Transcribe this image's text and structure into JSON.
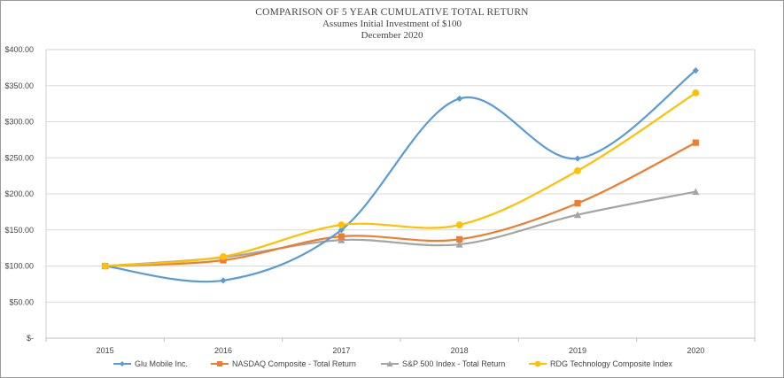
{
  "chart_data": {
    "type": "line",
    "title": "COMPARISON OF 5 YEAR CUMULATIVE  TOTAL RETURN",
    "subtitle": "Assumes Initial Investment of $100",
    "subtitle2": "December 2020",
    "xlabel": "",
    "ylabel": "",
    "categories": [
      "2015",
      "2016",
      "2017",
      "2018",
      "2019",
      "2020"
    ],
    "ylim": [
      0,
      400
    ],
    "yticks": [
      0,
      50,
      100,
      150,
      200,
      250,
      300,
      350,
      400
    ],
    "ytick_labels": [
      "$-",
      "$50.00",
      "$100.00",
      "$150.00",
      "$200.00",
      "$250.00",
      "$300.00",
      "$350.00",
      "$400.00"
    ],
    "grid": true,
    "legend_position": "bottom",
    "series": [
      {
        "name": "Glu Mobile Inc.",
        "color": "#5B9BD5",
        "marker": "diamond",
        "values": [
          100,
          80,
          150,
          332,
          249,
          371
        ]
      },
      {
        "name": "NASDAQ Composite - Total Return",
        "color": "#ED7D31",
        "marker": "square",
        "values": [
          100,
          108,
          141,
          137,
          187,
          271
        ]
      },
      {
        "name": "S&P 500 Index - Total Return",
        "color": "#A5A5A5",
        "marker": "triangle",
        "values": [
          100,
          112,
          136,
          130,
          171,
          203
        ]
      },
      {
        "name": "RDG Technology Composite Index",
        "color": "#FFC000",
        "marker": "circle",
        "values": [
          100,
          113,
          157,
          157,
          232,
          340
        ]
      }
    ]
  }
}
